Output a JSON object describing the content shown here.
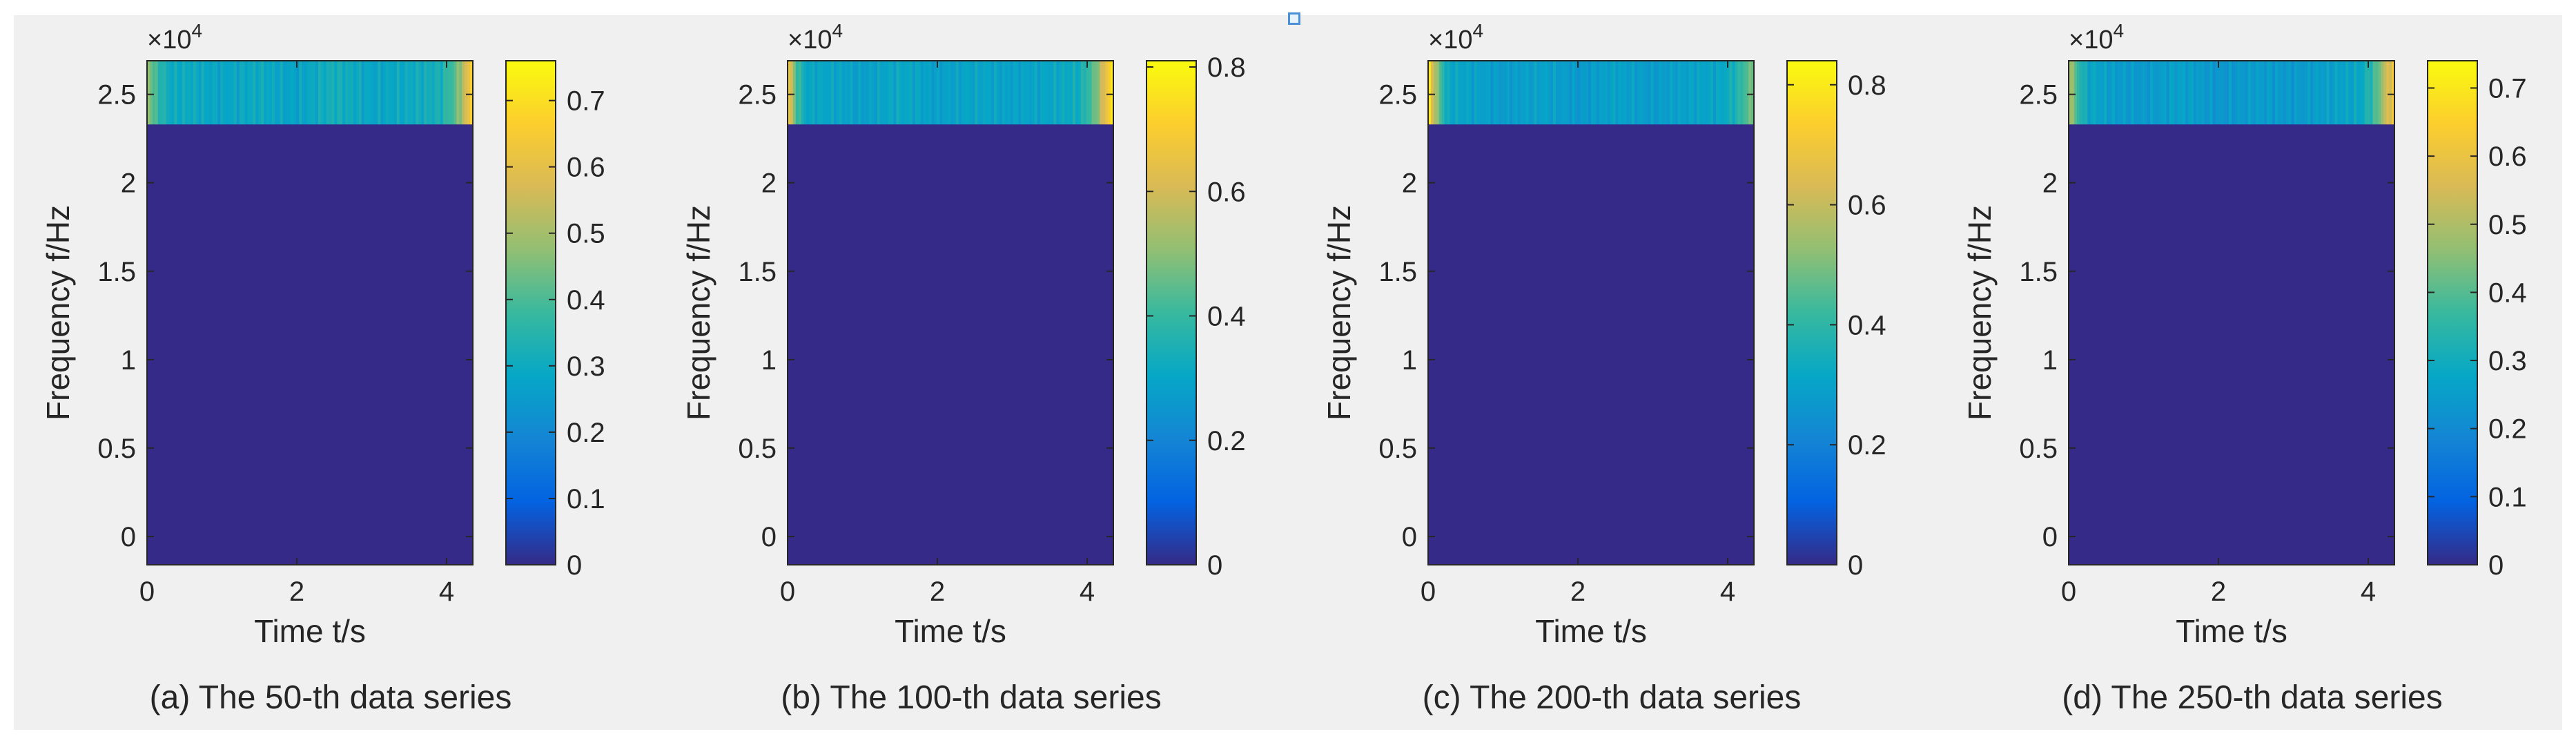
{
  "colors": {
    "figure_background": "#f0f0f0",
    "page_background": "#ffffff",
    "low_value_fill": "#352a87",
    "axis_line": "#262626",
    "text": "#262626",
    "parula": [
      "#352a87",
      "#0363e1",
      "#1485d4",
      "#06a7c6",
      "#38b99e",
      "#92bf73",
      "#d9ba56",
      "#fcce2e",
      "#f9fb0e"
    ]
  },
  "chart_data": [
    {
      "type": "heatmap",
      "caption": "(a) The 50-th data series",
      "xlabel": "Time t/s",
      "ylabel": "Frequency f/Hz",
      "y_exponent_prefix": "×10",
      "y_exponent_power": "4",
      "xlim": [
        0,
        4.35
      ],
      "ylim": [
        -1600,
        26900
      ],
      "xticks": [
        0,
        2,
        4
      ],
      "xtick_labels": [
        "0",
        "2",
        "4"
      ],
      "yticks": [
        0,
        5000,
        10000,
        15000,
        20000,
        25000
      ],
      "ytick_labels": [
        "0",
        "0.5",
        "1",
        "1.5",
        "2",
        "2.5"
      ],
      "colorbar": {
        "clim": [
          0,
          0.76
        ],
        "ticks": [
          0,
          0.1,
          0.2,
          0.3,
          0.4,
          0.5,
          0.6,
          0.7
        ],
        "tick_labels": [
          "0",
          "0.1",
          "0.2",
          "0.3",
          "0.4",
          "0.5",
          "0.6",
          "0.7"
        ]
      },
      "active_band_hz": [
        23300,
        26900
      ],
      "band_profile": {
        "times": [
          0,
          0.12,
          0.3,
          0.6,
          1.0,
          1.5,
          2.0,
          2.5,
          3.0,
          3.5,
          3.9,
          4.1,
          4.25,
          4.35
        ],
        "values": [
          0.5,
          0.38,
          0.3,
          0.3,
          0.28,
          0.3,
          0.27,
          0.32,
          0.28,
          0.3,
          0.32,
          0.4,
          0.55,
          0.7
        ]
      },
      "background_value": 0.0
    },
    {
      "type": "heatmap",
      "caption": "(b) The 100-th data series",
      "xlabel": "Time t/s",
      "ylabel": "Frequency f/Hz",
      "y_exponent_prefix": "×10",
      "y_exponent_power": "4",
      "xlim": [
        0,
        4.35
      ],
      "ylim": [
        -1600,
        26900
      ],
      "xticks": [
        0,
        2,
        4
      ],
      "xtick_labels": [
        "0",
        "2",
        "4"
      ],
      "yticks": [
        0,
        5000,
        10000,
        15000,
        20000,
        25000
      ],
      "ytick_labels": [
        "0",
        "0.5",
        "1",
        "1.5",
        "2",
        "2.5"
      ],
      "colorbar": {
        "clim": [
          0,
          0.81
        ],
        "ticks": [
          0,
          0.2,
          0.4,
          0.6,
          0.8
        ],
        "tick_labels": [
          "0",
          "0.2",
          "0.4",
          "0.6",
          "0.8"
        ]
      },
      "active_band_hz": [
        23300,
        26900
      ],
      "band_profile": {
        "times": [
          0,
          0.1,
          0.25,
          0.6,
          1.0,
          1.5,
          2.0,
          2.5,
          3.0,
          3.5,
          3.9,
          4.1,
          4.25,
          4.35
        ],
        "values": [
          0.72,
          0.45,
          0.3,
          0.3,
          0.28,
          0.31,
          0.28,
          0.3,
          0.29,
          0.3,
          0.33,
          0.45,
          0.65,
          0.78
        ]
      },
      "background_value": 0.0
    },
    {
      "type": "heatmap",
      "caption": "(c) The 200-th data series",
      "xlabel": "Time t/s",
      "ylabel": "Frequency f/Hz",
      "y_exponent_prefix": "×10",
      "y_exponent_power": "4",
      "xlim": [
        0,
        4.35
      ],
      "ylim": [
        -1600,
        26900
      ],
      "xticks": [
        0,
        2,
        4
      ],
      "xtick_labels": [
        "0",
        "2",
        "4"
      ],
      "yticks": [
        0,
        5000,
        10000,
        15000,
        20000,
        25000
      ],
      "ytick_labels": [
        "0",
        "0.5",
        "1",
        "1.5",
        "2",
        "2.5"
      ],
      "colorbar": {
        "clim": [
          0,
          0.84
        ],
        "ticks": [
          0,
          0.2,
          0.4,
          0.6,
          0.8
        ],
        "tick_labels": [
          "0",
          "0.2",
          "0.4",
          "0.6",
          "0.8"
        ]
      },
      "active_band_hz": [
        23300,
        26900
      ],
      "band_profile": {
        "times": [
          0,
          0.1,
          0.25,
          0.6,
          1.0,
          1.5,
          2.0,
          2.5,
          3.0,
          3.5,
          3.9,
          4.1,
          4.25,
          4.35
        ],
        "values": [
          0.8,
          0.55,
          0.32,
          0.3,
          0.28,
          0.3,
          0.27,
          0.3,
          0.28,
          0.3,
          0.31,
          0.36,
          0.45,
          0.5
        ]
      },
      "background_value": 0.0
    },
    {
      "type": "heatmap",
      "caption": "(d) The 250-th data series",
      "xlabel": "Time t/s",
      "ylabel": "Frequency f/Hz",
      "y_exponent_prefix": "×10",
      "y_exponent_power": "4",
      "xlim": [
        0,
        4.35
      ],
      "ylim": [
        -1600,
        26900
      ],
      "xticks": [
        0,
        2,
        4
      ],
      "xtick_labels": [
        "0",
        "2",
        "4"
      ],
      "yticks": [
        0,
        5000,
        10000,
        15000,
        20000,
        25000
      ],
      "ytick_labels": [
        "0",
        "0.5",
        "1",
        "1.5",
        "2",
        "2.5"
      ],
      "colorbar": {
        "clim": [
          0,
          0.74
        ],
        "ticks": [
          0,
          0.1,
          0.2,
          0.3,
          0.4,
          0.5,
          0.6,
          0.7
        ],
        "tick_labels": [
          "0",
          "0.1",
          "0.2",
          "0.3",
          "0.4",
          "0.5",
          "0.6",
          "0.7"
        ]
      },
      "active_band_hz": [
        23300,
        26900
      ],
      "band_profile": {
        "times": [
          0,
          0.1,
          0.25,
          0.6,
          1.0,
          1.5,
          2.0,
          2.5,
          3.0,
          3.5,
          3.9,
          4.1,
          4.25,
          4.35
        ],
        "values": [
          0.55,
          0.38,
          0.28,
          0.25,
          0.24,
          0.26,
          0.23,
          0.25,
          0.24,
          0.26,
          0.28,
          0.38,
          0.55,
          0.62
        ]
      },
      "background_value": 0.0
    }
  ]
}
